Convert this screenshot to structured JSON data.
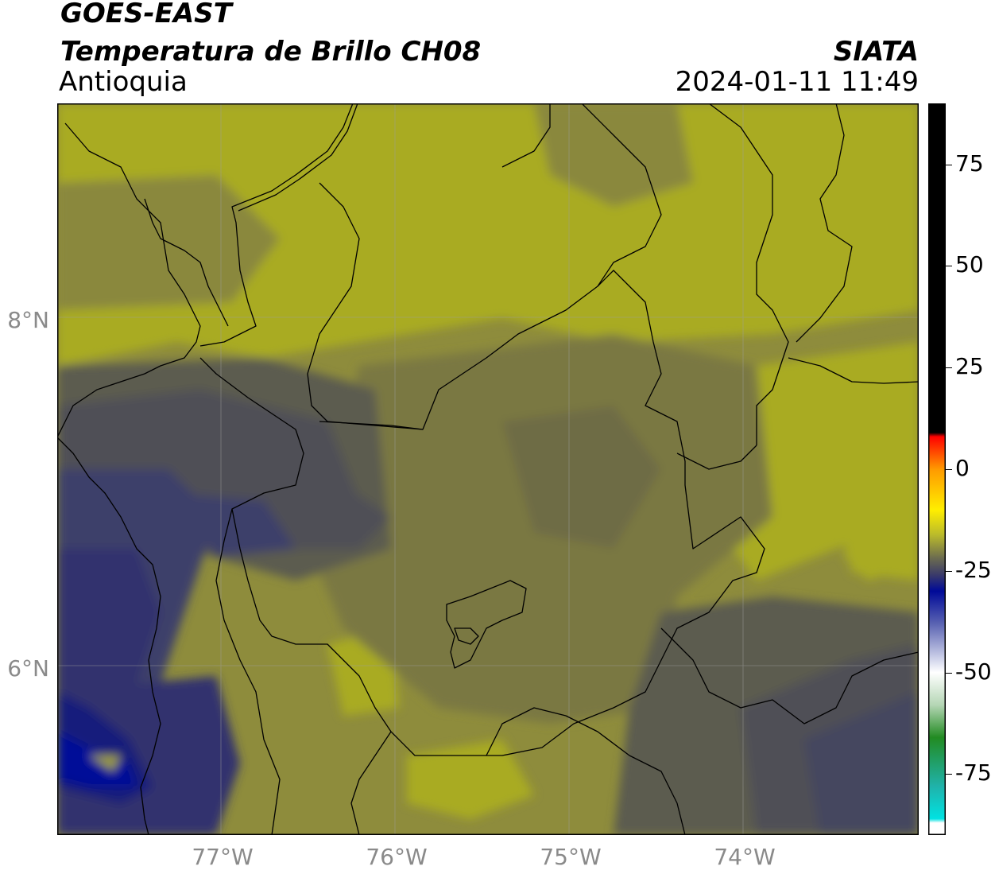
{
  "header": {
    "satellite": "GOES-EAST",
    "product": "Temperatura de Brillo CH08",
    "region": "Antioquia",
    "agency": "SIATA",
    "timestamp": "2024-01-11 11:49"
  },
  "map": {
    "lon_range": [
      -77.95,
      -73.0
    ],
    "lat_range": [
      5.05,
      9.25
    ],
    "lon_ticks": [
      {
        "value": -77,
        "label": "77°W"
      },
      {
        "value": -76,
        "label": "76°W"
      },
      {
        "value": -75,
        "label": "75°W"
      },
      {
        "value": -74,
        "label": "74°W"
      }
    ],
    "lat_ticks": [
      {
        "value": 8,
        "label": "8°N"
      },
      {
        "value": 6,
        "label": "6°N"
      }
    ],
    "gridlines": true,
    "colors": {
      "warm_olive": "#a9ab22",
      "olive": "#8e8c3c",
      "dark_olive": "#6e6c44",
      "gray": "#4f4f57",
      "blue_gray": "#3e3f6a",
      "navy": "#141a7c",
      "deep_blue": "#000a98",
      "border_line": "#000000",
      "grid_line": "#9e9e9e"
    }
  },
  "colorbar": {
    "range": [
      -90,
      90
    ],
    "tick_labels": [
      {
        "value": 75,
        "label": "75"
      },
      {
        "value": 50,
        "label": "50"
      },
      {
        "value": 25,
        "label": "25"
      },
      {
        "value": 0,
        "label": "0"
      },
      {
        "value": -25,
        "label": "-25"
      },
      {
        "value": -50,
        "label": "-50"
      },
      {
        "value": -75,
        "label": "-75"
      }
    ],
    "stops": [
      {
        "value": 90,
        "color": "#000000"
      },
      {
        "value": 9,
        "color": "#000000"
      },
      {
        "value": 8,
        "color": "#ff0000"
      },
      {
        "value": 0,
        "color": "#ff9a00"
      },
      {
        "value": -10,
        "color": "#ffee00"
      },
      {
        "value": -16,
        "color": "#bcbc2a"
      },
      {
        "value": -22,
        "color": "#6a6a50"
      },
      {
        "value": -26,
        "color": "#3a3a6a"
      },
      {
        "value": -30,
        "color": "#000a98"
      },
      {
        "value": -38,
        "color": "#5a63b2"
      },
      {
        "value": -46,
        "color": "#c6cae6"
      },
      {
        "value": -50,
        "color": "#ffffff"
      },
      {
        "value": -58,
        "color": "#b5d6b5"
      },
      {
        "value": -66,
        "color": "#228b22"
      },
      {
        "value": -78,
        "color": "#20b2aa"
      },
      {
        "value": -86,
        "color": "#00e2e2"
      },
      {
        "value": -87,
        "color": "#ffffff"
      },
      {
        "value": -90,
        "color": "#ffffff"
      }
    ]
  }
}
